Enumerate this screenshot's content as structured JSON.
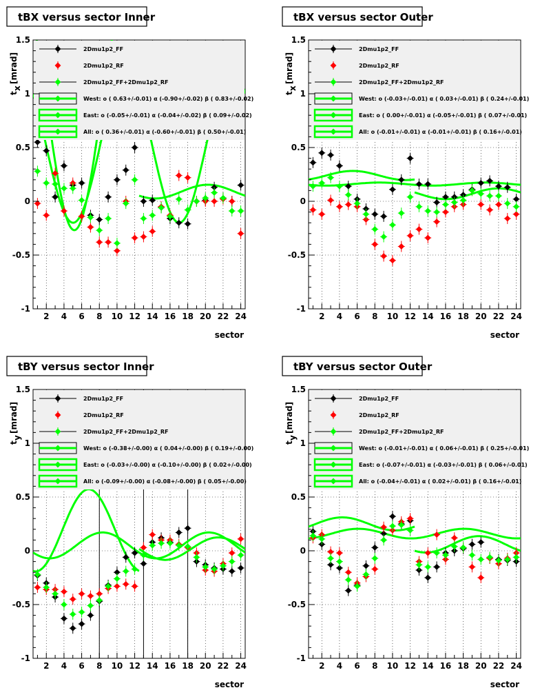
{
  "colors": {
    "ff": "#000000",
    "rf": "#ff0000",
    "comb": "#00ff00",
    "legend_bg": "#f0f0f0"
  },
  "chart_data": [
    {
      "type": "scatter",
      "title": "tBX versus  sector Inner",
      "xlabel": "sector",
      "ylabel_main": "t",
      "ylabel_sub": "x",
      "ylabel_unit": "[mrad]",
      "xlim": [
        0.5,
        24.5
      ],
      "ylim": [
        -1,
        1.5
      ],
      "x_ticks": [
        "2",
        "4",
        "6",
        "8",
        "10",
        "12",
        "14",
        "16",
        "18",
        "20",
        "22",
        "24"
      ],
      "y_ticks": [
        "-1",
        "-0.5",
        "0",
        "0.5",
        "1",
        "1.5"
      ],
      "vlines": [],
      "legend": [
        {
          "text": "2Dmu1p2_FF"
        },
        {
          "text": "2Dmu1p2_RF"
        },
        {
          "text": "2Dmu1p2_FF+2Dmu1p2_RF"
        },
        {
          "text": "West: o ( 0.63+/-0.01) α (-0.90+/-0.02) β ( 0.83+/-0.02)"
        },
        {
          "text": "East: o (-0.05+/-0.01) α (-0.04+/-0.02) β ( 0.09+/-0.02)"
        },
        {
          "text": "All: o ( 0.36+/-0.01) α (-0.60+/-0.01) β ( 0.50+/-0.01)"
        }
      ],
      "series": [
        {
          "name": "2Dmu1p2_FF",
          "color": "#000000",
          "x": [
            1,
            2,
            3,
            4,
            5,
            6,
            7,
            8,
            9,
            10,
            11,
            12,
            13,
            14,
            15,
            16,
            17,
            18,
            19,
            20,
            21,
            22,
            23,
            24
          ],
          "y": [
            0.55,
            0.47,
            0.04,
            0.33,
            0.15,
            0.17,
            -0.13,
            -0.17,
            0.04,
            0.2,
            0.29,
            0.5,
            0.0,
            0.01,
            -0.06,
            -0.16,
            -0.2,
            -0.21,
            0.0,
            0.01,
            0.13,
            0.03,
            0.0,
            0.15
          ]
        },
        {
          "name": "2Dmu1p2_RF",
          "color": "#ff0000",
          "x": [
            1,
            2,
            3,
            4,
            5,
            6,
            7,
            8,
            9,
            10,
            11,
            12,
            13,
            14,
            15,
            16,
            17,
            18,
            19,
            20,
            21,
            22,
            23,
            24
          ],
          "y": [
            -0.02,
            -0.13,
            0.26,
            -0.09,
            0.17,
            -0.14,
            -0.24,
            -0.38,
            -0.38,
            -0.46,
            0.0,
            -0.34,
            -0.33,
            -0.28,
            -0.05,
            -0.13,
            0.24,
            0.22,
            0.0,
            0.0,
            0.0,
            0.02,
            0.0,
            -0.3
          ]
        },
        {
          "name": "2Dmu1p2_FF+2Dmu1p2_RF",
          "color": "#00ff00",
          "x": [
            1,
            2,
            3,
            4,
            5,
            6,
            7,
            8,
            9,
            10,
            11,
            12,
            13,
            14,
            15,
            16,
            17,
            18,
            19,
            20,
            21,
            22,
            23,
            24
          ],
          "y": [
            0.28,
            0.17,
            0.16,
            0.12,
            0.12,
            0.01,
            -0.15,
            -0.27,
            -0.16,
            -0.39,
            -0.02,
            0.2,
            -0.16,
            -0.13,
            -0.06,
            -0.14,
            0.02,
            -0.08,
            0.0,
            0.03,
            0.08,
            0.03,
            -0.09,
            -0.09
          ]
        }
      ],
      "fits": {
        "west": {
          "o": 0.63,
          "a": -0.9,
          "b": 0.83
        },
        "east": {
          "o": -0.05,
          "a": -0.04,
          "b": 0.09
        },
        "all": {
          "o": 0.36,
          "a": -0.6,
          "b": 0.5
        }
      }
    },
    {
      "type": "scatter",
      "title": "tBX versus  sector Outer",
      "xlabel": "sector",
      "ylabel_main": "t",
      "ylabel_sub": "x",
      "ylabel_unit": "[mrad]",
      "xlim": [
        0.5,
        24.5
      ],
      "ylim": [
        -1,
        1.5
      ],
      "x_ticks": [
        "2",
        "4",
        "6",
        "8",
        "10",
        "12",
        "14",
        "16",
        "18",
        "20",
        "22",
        "24"
      ],
      "y_ticks": [
        "-1",
        "-0.5",
        "0",
        "0.5",
        "1",
        "1.5"
      ],
      "vlines": [],
      "legend": [
        {
          "text": "2Dmu1p2_FF"
        },
        {
          "text": "2Dmu1p2_RF"
        },
        {
          "text": "2Dmu1p2_FF+2Dmu1p2_RF"
        },
        {
          "text": "West: o (-0.03+/-0.01) α ( 0.03+/-0.01) β ( 0.24+/-0.01)"
        },
        {
          "text": "East: o ( 0.00+/-0.01) α (-0.05+/-0.01) β ( 0.07+/-0.01)"
        },
        {
          "text": "All: o (-0.01+/-0.01) α (-0.01+/-0.01) β ( 0.16+/-0.01)"
        }
      ],
      "series": [
        {
          "name": "2Dmu1p2_FF",
          "color": "#000000",
          "x": [
            1,
            2,
            3,
            4,
            5,
            6,
            7,
            8,
            9,
            10,
            11,
            12,
            13,
            14,
            15,
            16,
            17,
            18,
            19,
            20,
            21,
            22,
            23,
            24
          ],
          "y": [
            0.36,
            0.45,
            0.43,
            0.33,
            0.14,
            0.02,
            -0.07,
            -0.12,
            -0.14,
            0.11,
            0.2,
            0.4,
            0.16,
            0.16,
            -0.01,
            0.04,
            0.04,
            0.06,
            0.11,
            0.17,
            0.19,
            0.14,
            0.13,
            0.02
          ]
        },
        {
          "name": "2Dmu1p2_RF",
          "color": "#ff0000",
          "x": [
            1,
            2,
            3,
            4,
            5,
            6,
            7,
            8,
            9,
            10,
            11,
            12,
            13,
            14,
            15,
            16,
            17,
            18,
            19,
            20,
            21,
            22,
            23,
            24
          ],
          "y": [
            -0.08,
            -0.12,
            0.01,
            -0.05,
            -0.03,
            -0.05,
            -0.17,
            -0.4,
            -0.51,
            -0.55,
            -0.42,
            -0.32,
            -0.26,
            -0.34,
            -0.19,
            -0.1,
            -0.05,
            -0.03,
            0.1,
            -0.03,
            -0.08,
            -0.03,
            -0.16,
            -0.12
          ]
        },
        {
          "name": "2Dmu1p2_FF+2Dmu1p2_RF",
          "color": "#00ff00",
          "x": [
            1,
            2,
            3,
            4,
            5,
            6,
            7,
            8,
            9,
            10,
            11,
            12,
            13,
            14,
            15,
            16,
            17,
            18,
            19,
            20,
            21,
            22,
            23,
            24
          ],
          "y": [
            0.14,
            0.17,
            0.22,
            0.14,
            0.06,
            -0.02,
            -0.12,
            -0.26,
            -0.33,
            -0.22,
            -0.11,
            0.04,
            -0.05,
            -0.09,
            -0.1,
            -0.03,
            -0.01,
            0.01,
            0.1,
            0.07,
            0.05,
            0.05,
            -0.02,
            -0.05
          ]
        }
      ],
      "fits": {
        "west": {
          "o": -0.03,
          "a": 0.03,
          "b": 0.24
        },
        "east": {
          "o": 0.0,
          "a": -0.05,
          "b": 0.07
        },
        "all": {
          "o": -0.01,
          "a": -0.01,
          "b": 0.16
        }
      }
    },
    {
      "type": "scatter",
      "title": "tBY versus  sector Inner",
      "xlabel": "sector",
      "ylabel_main": "t",
      "ylabel_sub": "y",
      "ylabel_unit": "[mrad]",
      "xlim": [
        0.5,
        24.5
      ],
      "ylim": [
        -1,
        1.5
      ],
      "x_ticks": [
        "2",
        "4",
        "6",
        "8",
        "10",
        "12",
        "14",
        "16",
        "18",
        "20",
        "22",
        "24"
      ],
      "y_ticks": [
        "-1",
        "-0.5",
        "0",
        "0.5",
        "1",
        "1.5"
      ],
      "vlines": [
        8,
        13,
        18
      ],
      "legend": [
        {
          "text": "2Dmu1p2_FF"
        },
        {
          "text": "2Dmu1p2_RF"
        },
        {
          "text": "2Dmu1p2_FF+2Dmu1p2_RF"
        },
        {
          "text": "West: o (-0.38+/-0.00) α ( 0.04+/-0.00) β ( 0.19+/-0.00)"
        },
        {
          "text": "East: o (-0.03+/-0.00) α (-0.10+/-0.00) β ( 0.02+/-0.00)"
        },
        {
          "text": "All: o (-0.09+/-0.00) α (-0.08+/-0.00) β ( 0.05+/-0.00)"
        }
      ],
      "series": [
        {
          "name": "2Dmu1p2_FF",
          "color": "#000000",
          "x": [
            1,
            2,
            3,
            4,
            5,
            6,
            7,
            8,
            9,
            10,
            11,
            12,
            13,
            14,
            15,
            16,
            17,
            18,
            19,
            20,
            21,
            22,
            23,
            24
          ],
          "y": [
            -0.23,
            -0.3,
            -0.43,
            -0.63,
            -0.72,
            -0.68,
            -0.6,
            -0.47,
            -0.32,
            -0.2,
            -0.06,
            -0.02,
            -0.12,
            0.08,
            0.12,
            0.08,
            0.17,
            0.21,
            -0.1,
            -0.13,
            -0.16,
            -0.17,
            -0.19,
            -0.16
          ]
        },
        {
          "name": "2Dmu1p2_RF",
          "color": "#ff0000",
          "x": [
            1,
            2,
            3,
            4,
            5,
            6,
            7,
            8,
            9,
            10,
            11,
            12,
            13,
            14,
            15,
            16,
            17,
            18,
            19,
            20,
            21,
            22,
            23,
            24
          ],
          "y": [
            -0.34,
            -0.36,
            -0.36,
            -0.38,
            -0.45,
            -0.4,
            -0.42,
            -0.4,
            -0.35,
            -0.33,
            -0.31,
            -0.33,
            0.03,
            0.15,
            0.1,
            0.1,
            0.06,
            0.03,
            -0.02,
            -0.18,
            -0.19,
            -0.12,
            -0.02,
            0.11
          ]
        },
        {
          "name": "2Dmu1p2_FF+2Dmu1p2_RF",
          "color": "#00ff00",
          "x": [
            1,
            2,
            3,
            4,
            5,
            6,
            7,
            8,
            9,
            10,
            11,
            12,
            13,
            14,
            15,
            16,
            17,
            18,
            19,
            20,
            21,
            22,
            23,
            24
          ],
          "y": [
            -0.22,
            -0.34,
            -0.4,
            -0.5,
            -0.59,
            -0.57,
            -0.51,
            -0.46,
            -0.33,
            -0.26,
            -0.19,
            -0.17,
            -0.04,
            0.05,
            0.07,
            0.07,
            0.05,
            0.04,
            -0.06,
            -0.15,
            -0.17,
            -0.14,
            -0.1,
            -0.04
          ]
        }
      ],
      "fits": {
        "west": {
          "o": -0.38,
          "a": 0.04,
          "b": 0.19
        },
        "east": {
          "o": -0.03,
          "a": -0.1,
          "b": 0.02
        },
        "all": {
          "o": -0.09,
          "a": -0.08,
          "b": 0.05
        }
      }
    },
    {
      "type": "scatter",
      "title": "tBY versus  sector Outer",
      "xlabel": "sector",
      "ylabel_main": "t",
      "ylabel_sub": "y",
      "ylabel_unit": "[mrad]",
      "xlim": [
        0.5,
        24.5
      ],
      "ylim": [
        -1,
        1.5
      ],
      "x_ticks": [
        "2",
        "4",
        "6",
        "8",
        "10",
        "12",
        "14",
        "16",
        "18",
        "20",
        "22",
        "24"
      ],
      "y_ticks": [
        "-1",
        "-0.5",
        "0",
        "0.5",
        "1",
        "1.5"
      ],
      "vlines": [],
      "legend": [
        {
          "text": "2Dmu1p2_FF"
        },
        {
          "text": "2Dmu1p2_RF"
        },
        {
          "text": "2Dmu1p2_FF+2Dmu1p2_RF"
        },
        {
          "text": "West: o (-0.01+/-0.01) α ( 0.06+/-0.01) β ( 0.25+/-0.01)"
        },
        {
          "text": "East: o (-0.07+/-0.01) α (-0.03+/-0.01) β ( 0.06+/-0.01)"
        },
        {
          "text": "All: o (-0.04+/-0.01) α ( 0.02+/-0.01) β ( 0.16+/-0.01)"
        }
      ],
      "series": [
        {
          "name": "2Dmu1p2_FF",
          "color": "#000000",
          "x": [
            1,
            2,
            3,
            4,
            5,
            6,
            7,
            8,
            9,
            10,
            11,
            12,
            13,
            14,
            15,
            16,
            17,
            18,
            19,
            20,
            21,
            22,
            23,
            24
          ],
          "y": [
            0.18,
            0.06,
            -0.13,
            -0.16,
            -0.37,
            -0.32,
            -0.14,
            0.03,
            0.16,
            0.32,
            0.25,
            0.28,
            -0.18,
            -0.25,
            -0.15,
            -0.02,
            0.0,
            0.02,
            0.06,
            0.08,
            -0.07,
            -0.08,
            -0.09,
            -0.1
          ]
        },
        {
          "name": "2Dmu1p2_RF",
          "color": "#ff0000",
          "x": [
            1,
            2,
            3,
            4,
            5,
            6,
            7,
            8,
            9,
            10,
            11,
            12,
            13,
            14,
            15,
            16,
            17,
            18,
            19,
            20,
            21,
            22,
            23,
            24
          ],
          "y": [
            0.12,
            0.15,
            -0.01,
            -0.02,
            -0.2,
            -0.3,
            -0.24,
            -0.17,
            0.22,
            0.19,
            0.27,
            0.3,
            -0.1,
            -0.02,
            0.15,
            -0.08,
            0.12,
            0.03,
            -0.15,
            -0.25,
            -0.07,
            -0.12,
            -0.07,
            -0.02
          ]
        },
        {
          "name": "2Dmu1p2_FF+2Dmu1p2_RF",
          "color": "#00ff00",
          "x": [
            1,
            2,
            3,
            4,
            5,
            6,
            7,
            8,
            9,
            10,
            11,
            12,
            13,
            14,
            15,
            16,
            17,
            18,
            19,
            20,
            21,
            22,
            23,
            24
          ],
          "y": [
            0.14,
            0.11,
            -0.07,
            -0.1,
            -0.27,
            -0.33,
            -0.22,
            -0.07,
            0.1,
            0.23,
            0.24,
            0.19,
            -0.13,
            -0.15,
            -0.02,
            -0.04,
            0.04,
            0.03,
            -0.04,
            -0.08,
            -0.06,
            -0.09,
            -0.08,
            -0.06
          ]
        }
      ],
      "fits": {
        "west": {
          "o": -0.01,
          "a": 0.06,
          "b": 0.25
        },
        "east": {
          "o": -0.07,
          "a": -0.03,
          "b": 0.06
        },
        "all": {
          "o": -0.04,
          "a": 0.02,
          "b": 0.16
        }
      }
    }
  ]
}
